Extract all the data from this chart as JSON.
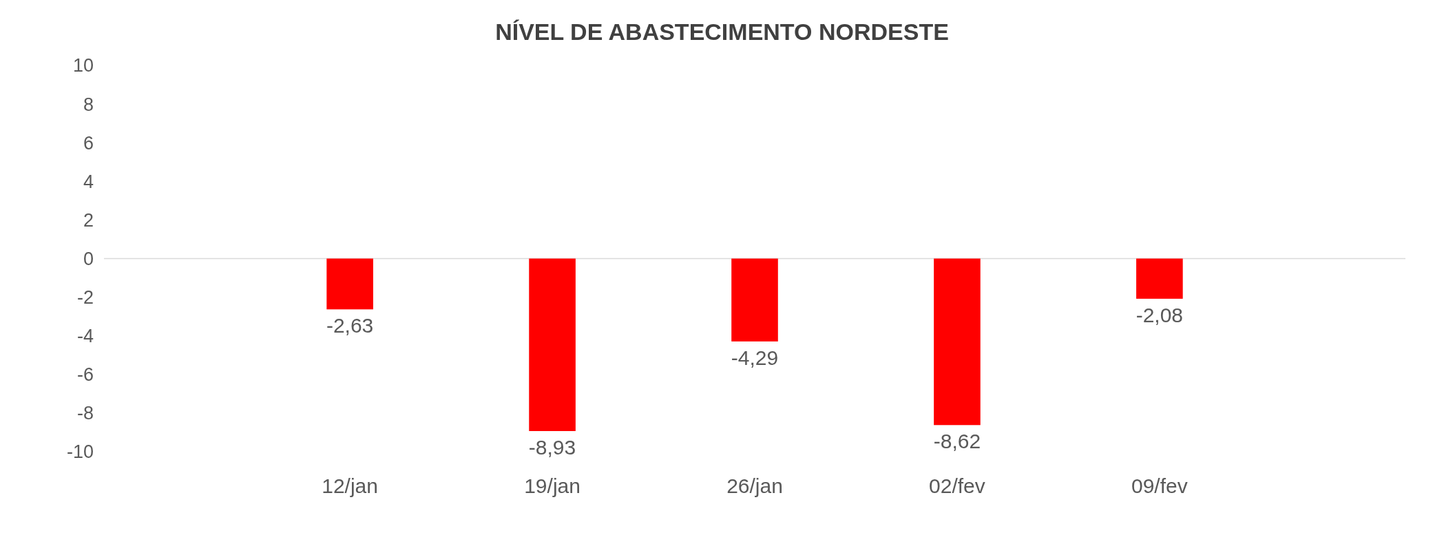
{
  "chart_data": {
    "type": "bar",
    "title": "NÍVEL DE ABASTECIMENTO NORDESTE",
    "categories": [
      null,
      "12/jan",
      "19/jan",
      "26/jan",
      "02/fev",
      "09/fev",
      null
    ],
    "values": [
      null,
      -2.63,
      -8.93,
      -4.29,
      -8.62,
      -2.08,
      null
    ],
    "value_labels": [
      null,
      "-2,63",
      "-8,93",
      "-4,29",
      "-8,62",
      "-2,08",
      null
    ],
    "color": "#ff0000",
    "ylim": [
      -10,
      10
    ],
    "yticks": [
      -10,
      -8,
      -6,
      -4,
      -2,
      0,
      2,
      4,
      6,
      8,
      10
    ],
    "ref_lines": [
      {
        "axis": "y",
        "value": 0,
        "color": "#d9d9d9"
      }
    ]
  }
}
